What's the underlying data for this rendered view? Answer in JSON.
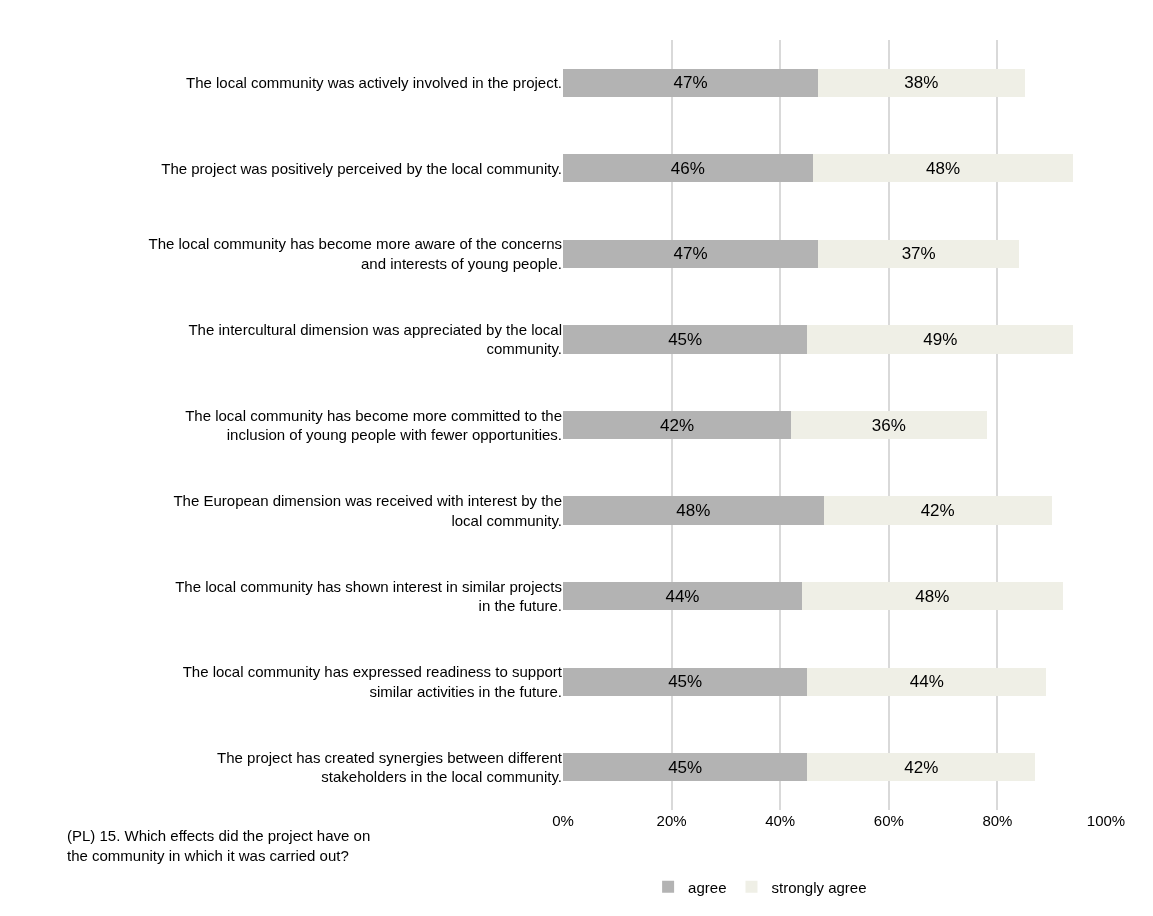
{
  "chart_data": {
    "type": "bar",
    "orientation": "horizontal",
    "stacked": true,
    "categories": [
      "The local community was actively involved in the project.",
      "The project was positively perceived by the local community.",
      "The local community has become more aware of the concerns and interests of young people.",
      "The intercultural dimension was appreciated by the local community.",
      "The local community has become more committed to the inclusion of young people with fewer opportunities.",
      "The European dimension was received with interest by the local community.",
      "The local community has shown interest in similar projects in the future.",
      "The local community has expressed readiness to support similar activities in the future.",
      "The project has created synergies between different stakeholders in the local community."
    ],
    "series": [
      {
        "name": "agree",
        "color": "#b3b3b3",
        "values": [
          47,
          46,
          47,
          45,
          42,
          48,
          44,
          45,
          45
        ],
        "value_labels": [
          "47%",
          "46%",
          "47%",
          "45%",
          "42%",
          "48%",
          "44%",
          "45%",
          "45%"
        ]
      },
      {
        "name": "strongly agree",
        "color": "#efefe6",
        "values": [
          38,
          48,
          37,
          49,
          36,
          42,
          48,
          44,
          42
        ],
        "value_labels": [
          "38%",
          "48%",
          "37%",
          "49%",
          "36%",
          "42%",
          "48%",
          "44%",
          "42%"
        ]
      }
    ],
    "xlim": [
      0,
      100
    ],
    "xticks": [
      {
        "value": 0,
        "label": "0%"
      },
      {
        "value": 20,
        "label": "20%"
      },
      {
        "value": 40,
        "label": "40%"
      },
      {
        "value": 60,
        "label": "60%"
      },
      {
        "value": 80,
        "label": "80%"
      },
      {
        "value": 100,
        "label": "100%"
      }
    ],
    "grid": "x",
    "legend": "bottom",
    "annotations": [
      "(PL) 15. Which effects did the project have on the community in which it was carried out?"
    ]
  }
}
